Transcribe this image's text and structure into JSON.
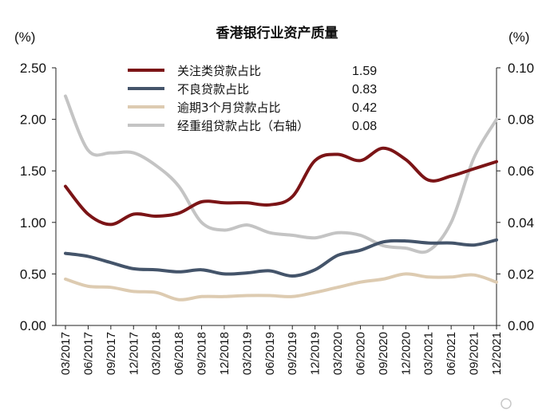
{
  "chart_data": {
    "type": "line",
    "title": "香港银行业资产质量",
    "left_unit": "(%)",
    "right_unit": "(%)",
    "categories": [
      "03/2017",
      "06/2017",
      "09/2017",
      "12/2017",
      "03/2018",
      "06/2018",
      "09/2018",
      "12/2018",
      "03/2019",
      "06/2019",
      "09/2019",
      "12/2019",
      "03/2020",
      "06/2020",
      "09/2020",
      "12/2020",
      "03/2021",
      "06/2021",
      "09/2021",
      "12/2021"
    ],
    "left_axis": {
      "min": 0,
      "max": 2.5,
      "ticks": [
        "0.00",
        "0.50",
        "1.00",
        "1.50",
        "2.00",
        "2.50"
      ]
    },
    "right_axis": {
      "min": 0,
      "max": 0.1,
      "ticks": [
        "0.00",
        "0.02",
        "0.04",
        "0.06",
        "0.08",
        "0.10"
      ]
    },
    "series": [
      {
        "name": "关注类贷款占比",
        "axis": "left",
        "color": "#7b1416",
        "latest": "1.59",
        "values": [
          1.35,
          1.08,
          0.98,
          1.08,
          1.06,
          1.09,
          1.2,
          1.19,
          1.19,
          1.17,
          1.25,
          1.6,
          1.66,
          1.6,
          1.72,
          1.61,
          1.41,
          1.45,
          1.52,
          1.59
        ]
      },
      {
        "name": "不良贷款占比",
        "axis": "left",
        "color": "#44546a",
        "latest": "0.83",
        "values": [
          0.7,
          0.67,
          0.61,
          0.55,
          0.54,
          0.52,
          0.54,
          0.5,
          0.51,
          0.53,
          0.48,
          0.54,
          0.68,
          0.73,
          0.81,
          0.82,
          0.8,
          0.8,
          0.78,
          0.83
        ]
      },
      {
        "name": "逾期3个月贷款占比",
        "axis": "left",
        "color": "#ddcbb1",
        "latest": "0.42",
        "values": [
          0.45,
          0.38,
          0.37,
          0.33,
          0.32,
          0.25,
          0.28,
          0.28,
          0.29,
          0.29,
          0.28,
          0.32,
          0.37,
          0.42,
          0.45,
          0.5,
          0.47,
          0.47,
          0.49,
          0.42
        ]
      },
      {
        "name": "经重组贷款占比（右轴）",
        "axis": "right",
        "color": "#c4c4c4",
        "latest": "0.08",
        "values": [
          0.089,
          0.068,
          0.067,
          0.067,
          0.062,
          0.054,
          0.04,
          0.037,
          0.039,
          0.036,
          0.035,
          0.034,
          0.036,
          0.035,
          0.031,
          0.03,
          0.029,
          0.04,
          0.065,
          0.08
        ]
      }
    ]
  }
}
